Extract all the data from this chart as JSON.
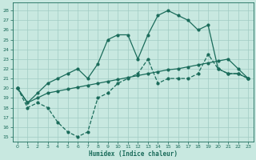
{
  "title": "",
  "xlabel": "Humidex (Indice chaleur)",
  "ylabel": "",
  "bg_color": "#c8e8e0",
  "grid_color": "#a0ccc4",
  "line_color": "#1a6b5a",
  "xlim": [
    -0.5,
    23.5
  ],
  "ylim": [
    14.5,
    28.8
  ],
  "yticks": [
    15,
    16,
    17,
    18,
    19,
    20,
    21,
    22,
    23,
    24,
    25,
    26,
    27,
    28
  ],
  "xticks": [
    0,
    1,
    2,
    3,
    4,
    5,
    6,
    7,
    8,
    9,
    10,
    11,
    12,
    13,
    14,
    15,
    16,
    17,
    18,
    19,
    20,
    21,
    22,
    23
  ],
  "line1_x": [
    0,
    1,
    2,
    3,
    4,
    5,
    6,
    7,
    8,
    9,
    10,
    11,
    12,
    13,
    14,
    15,
    16,
    17,
    18,
    19,
    20,
    21,
    22,
    23
  ],
  "line1_y": [
    20,
    18,
    18.5,
    18,
    16.5,
    15.5,
    15,
    15.5,
    19.0,
    19.5,
    20.5,
    21.0,
    21.5,
    23.0,
    20.5,
    21.0,
    21.0,
    21.0,
    21.5,
    23.5,
    22.0,
    21.5,
    21.5,
    21.0
  ],
  "line2_x": [
    0,
    1,
    2,
    3,
    4,
    5,
    6,
    7,
    8,
    9,
    10,
    11,
    12,
    13,
    14,
    15,
    16,
    17,
    18,
    19,
    20,
    21,
    22,
    23
  ],
  "line2_y": [
    20,
    18.5,
    19.0,
    19.5,
    19.7,
    19.9,
    20.1,
    20.3,
    20.5,
    20.7,
    20.9,
    21.1,
    21.3,
    21.5,
    21.7,
    21.9,
    22.0,
    22.2,
    22.4,
    22.6,
    22.8,
    23.0,
    22.0,
    21.0
  ],
  "line3_x": [
    0,
    1,
    2,
    3,
    4,
    5,
    6,
    7,
    8,
    9,
    10,
    11,
    12,
    13,
    14,
    15,
    16,
    17,
    18,
    19,
    20,
    21,
    22,
    23
  ],
  "line3_y": [
    20,
    18.5,
    19.5,
    20.5,
    21.0,
    21.5,
    22.0,
    21.0,
    22.5,
    25.0,
    25.5,
    25.5,
    23.0,
    25.5,
    27.5,
    28.0,
    27.5,
    27.0,
    26.0,
    26.5,
    22.0,
    21.5,
    21.5,
    21.0
  ]
}
